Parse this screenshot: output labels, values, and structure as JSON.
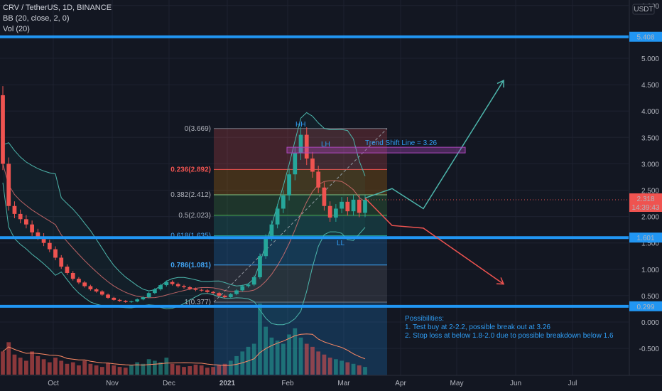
{
  "header": {
    "symbol_line": "CRV / TetherUS, 1D, BINANCE",
    "bb_line": "BB (20, close, 2, 0)",
    "vol_line": "Vol (20)"
  },
  "currency_badge": "USDT",
  "colors": {
    "background": "#131722",
    "up": "#26a69a",
    "down": "#ef5350",
    "level": "#2196f3",
    "bb": "#4db6ac",
    "basis": "#e57373",
    "fib_text": "#b2b5be",
    "fib_highlight": "#ef5350",
    "fib_blue": "#42a5f5",
    "projection_up": "#4db6ac",
    "projection_down": "#ef5350",
    "trend_box": "#ab47bc"
  },
  "chart_data": {
    "type": "candlestick",
    "x_ticks": [
      "Oct",
      "Nov",
      "Dec",
      "2021",
      "Feb",
      "Mar",
      "Apr",
      "May",
      "Jun",
      "Jul"
    ],
    "y_ticks": [
      "6.000",
      "5.000",
      "4.500",
      "4.000",
      "3.500",
      "3.000",
      "2.500",
      "2.000",
      "1.500",
      "1.000",
      "0.500",
      "0.000",
      "-0.500"
    ],
    "ylim": [
      -0.9,
      6.0
    ],
    "price_series": [
      [
        4.3,
        3.0
      ],
      [
        3.0,
        2.2
      ],
      [
        2.2,
        2.05
      ],
      [
        2.05,
        1.95
      ],
      [
        1.95,
        1.85
      ],
      [
        1.85,
        1.7
      ],
      [
        1.7,
        1.62
      ],
      [
        1.62,
        1.5
      ],
      [
        1.5,
        1.38
      ],
      [
        1.38,
        1.22
      ],
      [
        1.22,
        1.05
      ],
      [
        1.05,
        0.93
      ],
      [
        0.93,
        0.82
      ],
      [
        0.82,
        0.75
      ],
      [
        0.75,
        0.68
      ],
      [
        0.68,
        0.62
      ],
      [
        0.62,
        0.58
      ],
      [
        0.58,
        0.52
      ],
      [
        0.52,
        0.46
      ],
      [
        0.46,
        0.42
      ],
      [
        0.42,
        0.4
      ],
      [
        0.4,
        0.38
      ],
      [
        0.38,
        0.39
      ],
      [
        0.39,
        0.43
      ],
      [
        0.43,
        0.47
      ],
      [
        0.47,
        0.55
      ],
      [
        0.55,
        0.62
      ],
      [
        0.62,
        0.7
      ],
      [
        0.7,
        0.76
      ],
      [
        0.76,
        0.72
      ],
      [
        0.72,
        0.68
      ],
      [
        0.68,
        0.66
      ],
      [
        0.66,
        0.63
      ],
      [
        0.63,
        0.61
      ],
      [
        0.61,
        0.6
      ],
      [
        0.6,
        0.57
      ],
      [
        0.57,
        0.55
      ],
      [
        0.55,
        0.5
      ],
      [
        0.5,
        0.47
      ],
      [
        0.47,
        0.53
      ],
      [
        0.53,
        0.6
      ],
      [
        0.6,
        0.68
      ],
      [
        0.68,
        0.71
      ],
      [
        0.71,
        0.85
      ],
      [
        0.85,
        1.25
      ],
      [
        1.25,
        1.6
      ],
      [
        1.6,
        1.85
      ],
      [
        1.85,
        2.15
      ],
      [
        2.15,
        2.4
      ],
      [
        2.4,
        2.8
      ],
      [
        2.8,
        3.2
      ],
      [
        3.2,
        3.55
      ],
      [
        3.55,
        3.1
      ],
      [
        3.1,
        2.85
      ],
      [
        2.85,
        2.55
      ],
      [
        2.55,
        2.2
      ],
      [
        2.2,
        1.98
      ],
      [
        1.98,
        2.15
      ],
      [
        2.15,
        2.28
      ],
      [
        2.28,
        2.1
      ],
      [
        2.1,
        2.32
      ],
      [
        2.32,
        2.07
      ],
      [
        2.07,
        2.318
      ]
    ],
    "volume_series": [
      30,
      42,
      26,
      22,
      18,
      30,
      24,
      20,
      16,
      22,
      18,
      14,
      16,
      12,
      18,
      14,
      12,
      10,
      15,
      12,
      10,
      9,
      12,
      16,
      14,
      20,
      18,
      16,
      22,
      14,
      12,
      10,
      11,
      13,
      12,
      9,
      10,
      12,
      14,
      18,
      24,
      30,
      36,
      40,
      92,
      62,
      48,
      44,
      40,
      52,
      60,
      48,
      40,
      36,
      30,
      26,
      22,
      20,
      18,
      16,
      14,
      12,
      10
    ],
    "levels": [
      "5.408",
      "1.601",
      "0.299"
    ],
    "last_price": "2.318",
    "countdown": "14:39:43",
    "fib_levels": [
      {
        "ratio": "0",
        "price": 3.669,
        "label": "0(3.669)"
      },
      {
        "ratio": "0.236",
        "price": 2.892,
        "label": "0.236(2.892)"
      },
      {
        "ratio": "0.382",
        "price": 2.412,
        "label": "0.382(2.412)"
      },
      {
        "ratio": "0.5",
        "price": 2.023,
        "label": "0.5(2.023)"
      },
      {
        "ratio": "0.618",
        "price": 1.635,
        "label": "0.618(1.635)"
      },
      {
        "ratio": "0.786",
        "price": 1.081,
        "label": "0.786(1.081)"
      },
      {
        "ratio": "1",
        "price": 0.377,
        "label": "1(0.377)"
      }
    ],
    "trend_shift_value": 3.26,
    "projection_up": [
      [
        2.35,
        0
      ],
      [
        2.53,
        1
      ],
      [
        2.15,
        2
      ],
      [
        4.58,
        3
      ]
    ],
    "projection_down": [
      [
        2.35,
        0
      ],
      [
        1.83,
        1
      ],
      [
        1.78,
        2
      ],
      [
        0.72,
        3
      ]
    ],
    "annotations": {
      "hh": "HH",
      "lh": "LH",
      "ll": "LL",
      "trend_shift": "Trend Shift Line = 3.26",
      "possibilities_title": "Possibilities:",
      "possibility_1": "1. Test buy at 2-2.2, possible break out at 3.26",
      "possibility_2": "2. Stop loss at below 1.8-2.0 due to possible breakdown below 1.6"
    }
  }
}
